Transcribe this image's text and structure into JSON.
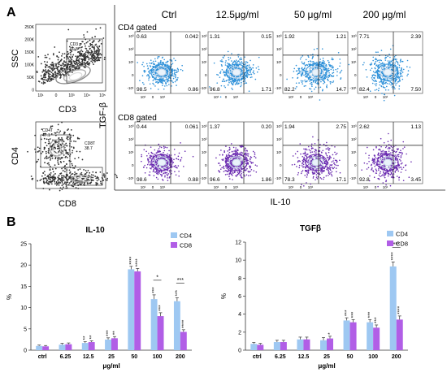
{
  "panel_a": {
    "label": "A",
    "gating": [
      {
        "y_label": "SSC",
        "x_label": "CD3",
        "y_ticks": [
          "250K",
          "200K",
          "150K",
          "100K",
          "50K",
          "0"
        ],
        "x_ticks": [
          "10¹",
          "0",
          "10³",
          "10⁴",
          "10⁵"
        ],
        "gate_text": [
          "CD3",
          "90.8"
        ]
      },
      {
        "y_label": "CD4",
        "x_label": "CD8",
        "gate_text_left": [
          "CD4T",
          "47.1"
        ],
        "gate_text_right": [
          "CD8T",
          "38.7"
        ]
      }
    ],
    "columns": [
      "Ctrl",
      "12.5μg/ml",
      "50 μg/ml",
      "200 μg/ml"
    ],
    "row_labels": [
      "CD4 gated",
      "CD8 gated"
    ],
    "y_axis_label": "TGF-β",
    "x_axis_label": "IL-10",
    "plot_y_ticks": [
      "10³",
      "10²",
      "10¹",
      "0",
      "-10¹"
    ],
    "plot_x_ticks": [
      "10¹",
      "0",
      "10¹"
    ],
    "quadrants": [
      [
        [
          "0.63",
          "0.042",
          "98.5",
          "0.86"
        ],
        [
          "1.31",
          "0.15",
          "96.8",
          "1.71"
        ],
        [
          "1.92",
          "1.21",
          "82.2",
          "14.7"
        ],
        [
          "7.71",
          "2.39",
          "82.4",
          "7.50"
        ]
      ],
      [
        [
          "0.44",
          "0.061",
          "98.6",
          "0.88"
        ],
        [
          "1.37",
          "0.20",
          "96.6",
          "1.86"
        ],
        [
          "1.94",
          "2.75",
          "78.3",
          "17.1"
        ],
        [
          "2.62",
          "1.13",
          "92.8",
          "3.45"
        ]
      ]
    ],
    "colors": {
      "cd4": "#2b8fd8",
      "cd8": "#6a2bb0"
    }
  },
  "panel_b": {
    "label": "B",
    "chart_data": [
      {
        "type": "bar",
        "title": "IL-10",
        "xlabel": "μg/ml",
        "ylabel": "%",
        "ylim": [
          0,
          25
        ],
        "yticks": [
          0,
          5,
          10,
          15,
          20,
          25
        ],
        "categories": [
          "ctrl",
          "6.25",
          "12.5",
          "25",
          "50",
          "100",
          "200"
        ],
        "series": [
          {
            "name": "CD4",
            "color": "#9ec8f2",
            "values": [
              1.0,
              1.3,
              1.7,
              2.5,
              19.0,
              12.0,
              11.5
            ],
            "errors": [
              0.2,
              0.3,
              0.3,
              0.4,
              0.7,
              1.0,
              0.8
            ]
          },
          {
            "name": "CD8",
            "color": "#b15ee6",
            "values": [
              0.9,
              1.4,
              1.9,
              2.8,
              18.5,
              8.0,
              4.3
            ],
            "errors": [
              0.2,
              0.3,
              0.3,
              0.4,
              0.7,
              0.8,
              0.5
            ]
          }
        ],
        "stars": [
          [
            "",
            ""
          ],
          [
            "",
            ""
          ],
          [
            "**",
            "**"
          ],
          [
            "***",
            "**"
          ],
          [
            "****",
            "****"
          ],
          [
            "***",
            "***"
          ],
          [
            "***",
            "****"
          ]
        ],
        "brackets": [
          {
            "category": "100",
            "label": "*"
          },
          {
            "category": "200",
            "label": "***"
          }
        ],
        "legend": "top-right"
      },
      {
        "type": "bar",
        "title": "TGFβ",
        "xlabel": "μg/ml",
        "ylabel": "%",
        "ylim": [
          0,
          12
        ],
        "yticks": [
          0,
          2,
          4,
          6,
          8,
          10,
          12
        ],
        "categories": [
          "ctrl",
          "6.25",
          "12.5",
          "25",
          "50",
          "100",
          "200"
        ],
        "series": [
          {
            "name": "CD4",
            "color": "#9ec8f2",
            "values": [
              0.7,
              0.9,
              1.2,
              1.1,
              3.3,
              3.1,
              9.3
            ],
            "errors": [
              0.15,
              0.2,
              0.25,
              0.3,
              0.3,
              0.3,
              0.5
            ]
          },
          {
            "name": "CD8",
            "color": "#b15ee6",
            "values": [
              0.6,
              0.9,
              1.2,
              1.3,
              3.1,
              2.5,
              3.4
            ],
            "errors": [
              0.15,
              0.2,
              0.25,
              0.25,
              0.3,
              0.3,
              0.4
            ]
          }
        ],
        "stars": [
          [
            "",
            ""
          ],
          [
            "",
            ""
          ],
          [
            "",
            ""
          ],
          [
            "",
            "*"
          ],
          [
            "***",
            "***"
          ],
          [
            "***",
            "***"
          ],
          [
            "****",
            "****"
          ]
        ],
        "brackets": [
          {
            "category": "200",
            "label": "***"
          }
        ],
        "legend": "top-right"
      }
    ]
  }
}
